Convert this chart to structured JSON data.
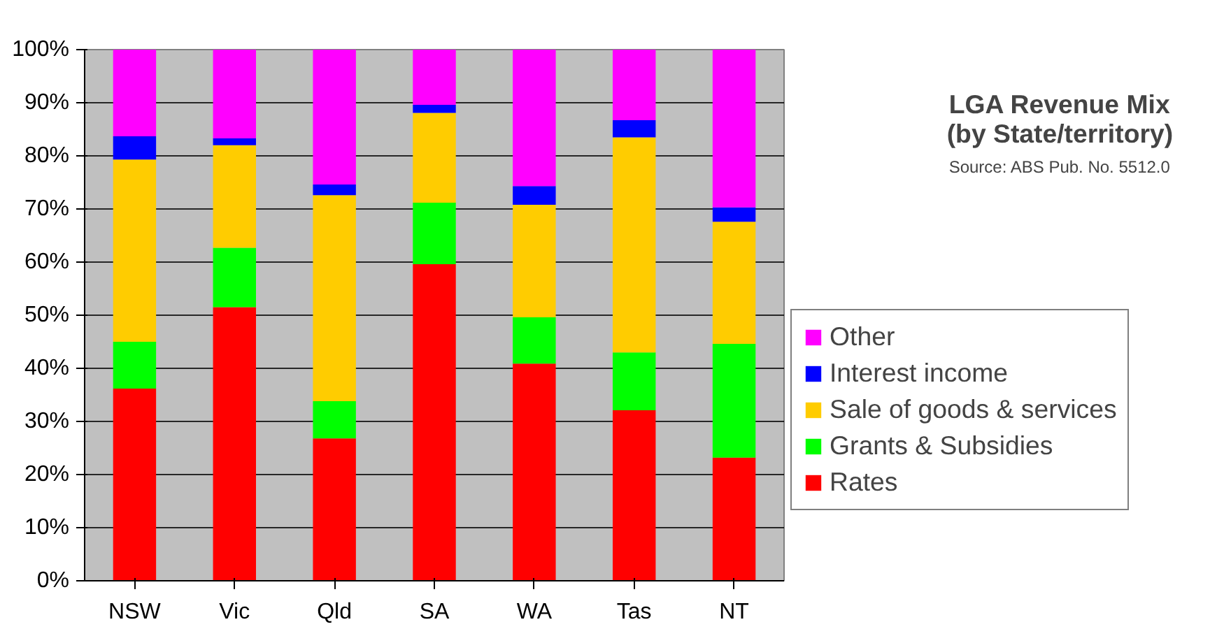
{
  "chart_data": {
    "type": "bar",
    "stacked": true,
    "title": "LGA Revenue Mix\n(by State/territory)",
    "annotations": [
      "Source: ABS Pub. No. 5512.0"
    ],
    "categories": [
      "NSW",
      "Vic",
      "Qld",
      "SA",
      "WA",
      "Tas",
      "NT"
    ],
    "series": [
      {
        "name": "Rates",
        "color": "#ff0000",
        "values": [
          36.2,
          51.5,
          26.8,
          59.6,
          40.9,
          32.1,
          23.2
        ]
      },
      {
        "name": "Grants & Subsidies",
        "color": "#00ff00",
        "values": [
          8.8,
          11.2,
          7.0,
          11.6,
          8.7,
          10.9,
          21.4
        ]
      },
      {
        "name": "Sale of goods & services",
        "color": "#ffcc00",
        "values": [
          34.3,
          19.3,
          38.8,
          16.9,
          21.2,
          40.5,
          23.0
        ]
      },
      {
        "name": "Interest income",
        "color": "#0000ff",
        "values": [
          4.4,
          1.3,
          2.0,
          1.5,
          3.5,
          3.2,
          2.7
        ]
      },
      {
        "name": "Other",
        "color": "#ff00ff",
        "values": [
          16.3,
          16.7,
          25.4,
          10.4,
          25.7,
          13.3,
          29.7
        ]
      }
    ],
    "ylim": [
      0,
      100
    ],
    "yticks": [
      {
        "value": 0,
        "label": "0%"
      },
      {
        "value": 10,
        "label": "10%"
      },
      {
        "value": 20,
        "label": "20%"
      },
      {
        "value": 30,
        "label": "30%"
      },
      {
        "value": 40,
        "label": "40%"
      },
      {
        "value": 50,
        "label": "50%"
      },
      {
        "value": 60,
        "label": "60%"
      },
      {
        "value": 70,
        "label": "70%"
      },
      {
        "value": 80,
        "label": "80%"
      },
      {
        "value": 90,
        "label": "90%"
      },
      {
        "value": 100,
        "label": "100%"
      }
    ],
    "grid": "y",
    "legend": "right"
  }
}
